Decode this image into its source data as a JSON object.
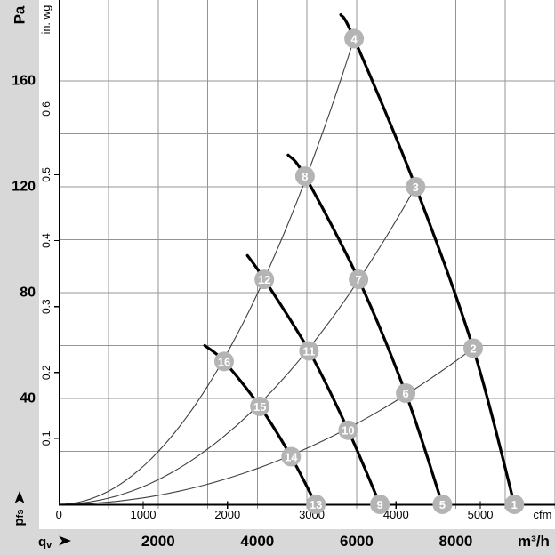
{
  "colors": {
    "background": "#d8d8d8",
    "panel": "#ffffff",
    "grid": "#949494",
    "axis": "#000000",
    "fan_curve": "#000000",
    "system_curve": "#3f3f3f",
    "point_fill": "#b4b4b4",
    "point_text": "#ffffff",
    "text": "#000000"
  },
  "axes": {
    "pressure_primary": {
      "unit": "Pa",
      "ticks": [
        40,
        80,
        120,
        160
      ],
      "range": [
        0,
        190
      ],
      "gridline_step": 20
    },
    "pressure_secondary": {
      "unit": "in. wg",
      "ticks": [
        0.1,
        0.2,
        0.3,
        0.4,
        0.5,
        0.6
      ],
      "pa_per_unit": 249.1
    },
    "flow_primary": {
      "unit": "m³/h",
      "ticks": [
        2000,
        4000,
        6000,
        8000
      ],
      "range": [
        0,
        10000
      ],
      "gridline_step": 1000
    },
    "flow_secondary": {
      "unit": "cfm",
      "ticks": [
        0,
        1000,
        2000,
        3000,
        4000,
        5000
      ],
      "m3h_per_cfm": 1.699
    },
    "flow_symbol": {
      "base": "q",
      "sub": "v"
    },
    "pressure_symbol": {
      "base": "p",
      "sub": "fs"
    }
  },
  "chart_data": {
    "type": "line",
    "xlabel": "qv",
    "ylabel": "pfs",
    "x_units": [
      "m³/h",
      "cfm"
    ],
    "y_units": [
      "Pa",
      "in. wg"
    ],
    "xlim_m3h": [
      0,
      10000
    ],
    "ylim_pa": [
      0,
      190
    ],
    "grid": "on",
    "fan_curves": [
      {
        "name": "fan-curve-1",
        "points_q_pa": [
          [
            5680,
            185
          ],
          [
            5950,
            176
          ],
          [
            7190,
            120
          ],
          [
            8350,
            59
          ],
          [
            9180,
            0
          ]
        ]
      },
      {
        "name": "fan-curve-2",
        "points_q_pa": [
          [
            4620,
            132
          ],
          [
            4960,
            124
          ],
          [
            6040,
            85
          ],
          [
            6990,
            42
          ],
          [
            7730,
            0
          ]
        ]
      },
      {
        "name": "fan-curve-3",
        "points_q_pa": [
          [
            3800,
            94
          ],
          [
            4140,
            85
          ],
          [
            5040,
            58
          ],
          [
            5830,
            28
          ],
          [
            6470,
            0
          ]
        ]
      },
      {
        "name": "fan-curve-4",
        "points_q_pa": [
          [
            2940,
            60
          ],
          [
            3330,
            54
          ],
          [
            4050,
            37
          ],
          [
            4680,
            18
          ],
          [
            5180,
            0
          ]
        ]
      }
    ],
    "system_curves": [
      {
        "name": "system-curve-A",
        "end_q_pa": [
          5950,
          176
        ]
      },
      {
        "name": "system-curve-B",
        "end_q_pa": [
          7190,
          120
        ]
      },
      {
        "name": "system-curve-C",
        "end_q_pa": [
          8350,
          59
        ]
      }
    ],
    "operating_points": [
      {
        "label": "1",
        "q": 9180,
        "p": 0
      },
      {
        "label": "2",
        "q": 8350,
        "p": 59
      },
      {
        "label": "3",
        "q": 7190,
        "p": 120
      },
      {
        "label": "4",
        "q": 5950,
        "p": 176
      },
      {
        "label": "5",
        "q": 7730,
        "p": 0
      },
      {
        "label": "6",
        "q": 6990,
        "p": 42
      },
      {
        "label": "7",
        "q": 6040,
        "p": 85
      },
      {
        "label": "8",
        "q": 4960,
        "p": 124
      },
      {
        "label": "9",
        "q": 6470,
        "p": 0
      },
      {
        "label": "10",
        "q": 5830,
        "p": 28
      },
      {
        "label": "11",
        "q": 5040,
        "p": 58
      },
      {
        "label": "12",
        "q": 4140,
        "p": 85
      },
      {
        "label": "13",
        "q": 5180,
        "p": 0
      },
      {
        "label": "14",
        "q": 4680,
        "p": 18
      },
      {
        "label": "15",
        "q": 4050,
        "p": 37
      },
      {
        "label": "16",
        "q": 3330,
        "p": 54
      }
    ]
  }
}
